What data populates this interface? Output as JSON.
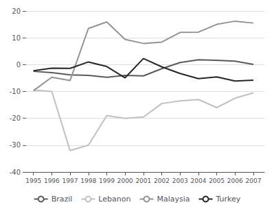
{
  "chart_data": {
    "type": "line",
    "x": [
      1995,
      1996,
      1997,
      1998,
      1999,
      2000,
      2001,
      2002,
      2003,
      2004,
      2005,
      2006,
      2007
    ],
    "xlim": [
      1994.6,
      2007.6
    ],
    "xticks": [
      1995,
      1996,
      1997,
      1998,
      1999,
      2000,
      2001,
      2002,
      2003,
      2004,
      2005,
      2006,
      2007
    ],
    "ylim": [
      -40,
      20
    ],
    "yticks": [
      -40,
      -30,
      -20,
      -10,
      0,
      10,
      20
    ],
    "grid": true,
    "legend": "bottom",
    "series": [
      {
        "name": "Brazil",
        "color": "#595959",
        "values": [
          -2.5,
          -3.0,
          -3.8,
          -4.0,
          -4.7,
          -4.0,
          -4.2,
          -1.5,
          0.8,
          1.8,
          1.6,
          1.3,
          0.1
        ]
      },
      {
        "name": "Lebanon",
        "color": "#c0c0c0",
        "values": [
          -9.5,
          -10.0,
          -32.0,
          -30.0,
          -19.0,
          -20.0,
          -19.5,
          -14.5,
          -13.5,
          -13.0,
          -16.0,
          -12.5,
          -10.5
        ]
      },
      {
        "name": "Malaysia",
        "color": "#939393",
        "values": [
          -9.7,
          -4.7,
          -5.9,
          13.5,
          15.9,
          9.4,
          7.9,
          8.4,
          12.0,
          12.1,
          15.0,
          16.2,
          15.5
        ]
      },
      {
        "name": "Turkey",
        "color": "#252525",
        "values": [
          -2.3,
          -1.3,
          -1.4,
          1.0,
          -0.7,
          -4.9,
          2.3,
          -0.8,
          -3.3,
          -5.2,
          -4.6,
          -6.1,
          -5.8
        ]
      }
    ]
  }
}
